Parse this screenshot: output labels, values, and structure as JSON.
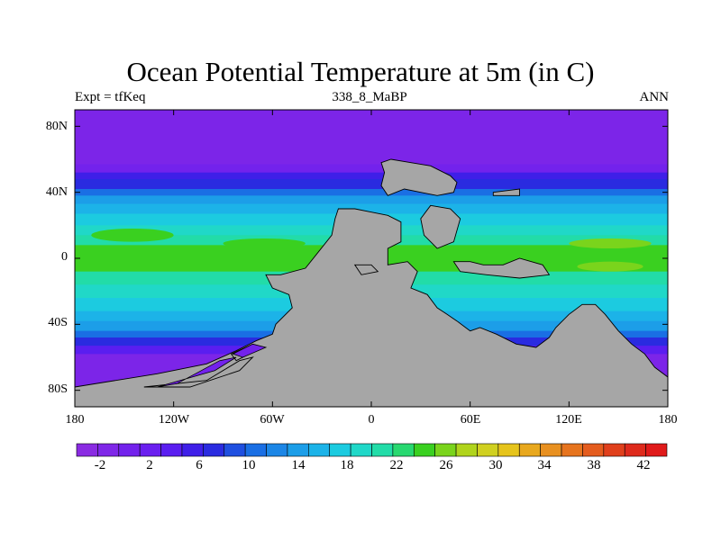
{
  "title": "Ocean Potential Temperature at 5m (in C)",
  "subtitle_left": "Expt = tfKeq",
  "subtitle_center": "338_8_MaBP",
  "subtitle_right": "ANN",
  "lat_ticks": [
    "80N",
    "40N",
    "0",
    "40S",
    "80S"
  ],
  "lon_ticks": [
    "180",
    "120W",
    "60W",
    "0",
    "60E",
    "120E",
    "180"
  ],
  "colorbar": {
    "colors": [
      "#8a2be2",
      "#7f27e8",
      "#7322ec",
      "#6a1fef",
      "#5a1ef0",
      "#3f1fe8",
      "#2a2be0",
      "#1f4fe0",
      "#1a6fe4",
      "#1c86e6",
      "#1c9ee8",
      "#1cb3e8",
      "#1ccbe0",
      "#20d8c8",
      "#22dca8",
      "#28d870",
      "#3ad020",
      "#7ad41c",
      "#b0d41c",
      "#d0d020",
      "#e6c41c",
      "#e8a81e",
      "#e89020",
      "#e6741e",
      "#e45c1e",
      "#e0401c",
      "#de2a1c",
      "#e01a1a"
    ],
    "labels": [
      "-2",
      "2",
      "6",
      "10",
      "14",
      "18",
      "22",
      "26",
      "30",
      "34",
      "38",
      "42"
    ],
    "range": [
      -4,
      44
    ]
  },
  "map": {
    "land_color": "#a6a6a6",
    "bands": [
      {
        "lat": 90,
        "color": "#7c25e8"
      },
      {
        "lat": 57,
        "color": "#7322ec"
      },
      {
        "lat": 52,
        "color": "#3f1fe8"
      },
      {
        "lat": 48,
        "color": "#2a2be0"
      },
      {
        "lat": 42,
        "color": "#1a6fe4"
      },
      {
        "lat": 38,
        "color": "#1c9ee8"
      },
      {
        "lat": 33,
        "color": "#1cb3e8"
      },
      {
        "lat": 27,
        "color": "#1ccbe0"
      },
      {
        "lat": 20,
        "color": "#20d8c8"
      },
      {
        "lat": 14,
        "color": "#22dca8"
      },
      {
        "lat": 8,
        "color": "#3ad020"
      },
      {
        "lat": -8,
        "color": "#22dca8"
      },
      {
        "lat": -16,
        "color": "#20d8c8"
      },
      {
        "lat": -24,
        "color": "#1ccbe0"
      },
      {
        "lat": -32,
        "color": "#1cb3e8"
      },
      {
        "lat": -38,
        "color": "#1c9ee8"
      },
      {
        "lat": -44,
        "color": "#1a6fe4"
      },
      {
        "lat": -48,
        "color": "#2a2be0"
      },
      {
        "lat": -53,
        "color": "#5a1ef0"
      },
      {
        "lat": -58,
        "color": "#7c25e8"
      }
    ]
  }
}
